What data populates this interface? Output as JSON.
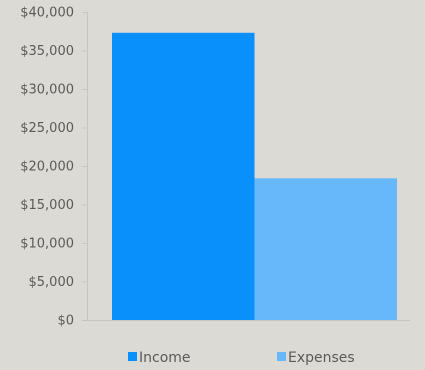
{
  "chart_data": {
    "type": "bar",
    "categories": [
      ""
    ],
    "series": [
      {
        "name": "Income",
        "values": [
          37300
        ],
        "color": "#0a90fb"
      },
      {
        "name": "Expenses",
        "values": [
          18400
        ],
        "color": "#67b8fa"
      }
    ],
    "y_ticks": [
      "$0",
      "$5,000",
      "$10,000",
      "$15,000",
      "$20,000",
      "$25,000",
      "$30,000",
      "$35,000",
      "$40,000"
    ],
    "ylim": [
      0,
      40000
    ],
    "title": "",
    "xlabel": "",
    "ylabel": "",
    "grid": false,
    "legend_position": "bottom",
    "axis_color": "#c7c5bf",
    "text_color": "#5a5a5a"
  }
}
